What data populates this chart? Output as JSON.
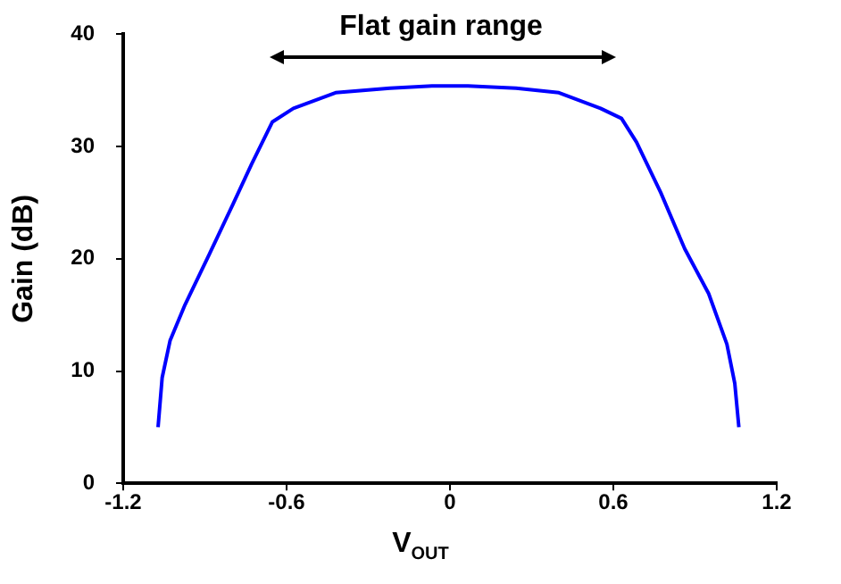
{
  "chart_data": {
    "type": "line",
    "ylabel": "Gain (dB)",
    "xlabel": "V$_{OUT}$",
    "annotations": [
      "Flat gain range"
    ],
    "x": [
      -1.072,
      -1.057,
      -1.028,
      -0.973,
      -0.884,
      -0.796,
      -0.729,
      -0.652,
      -0.575,
      -0.42,
      -0.22,
      -0.066,
      0.066,
      0.243,
      0.4,
      0.553,
      0.63,
      0.685,
      0.774,
      0.862,
      0.95,
      1.017,
      1.046,
      1.061
    ],
    "series": [
      {
        "color": "#0000ff",
        "values": [
          5,
          9.4,
          12.7,
          15.9,
          20.4,
          24.9,
          28.4,
          32.2,
          33.4,
          34.8,
          35.2,
          35.4,
          35.4,
          35.2,
          34.8,
          33.4,
          32.5,
          30.4,
          25.9,
          20.9,
          16.9,
          12.4,
          8.9,
          5
        ]
      }
    ],
    "xlim": [
      -1.2,
      1.2
    ],
    "xticks": [
      -1.2,
      -0.6,
      0,
      0.6,
      1.2
    ],
    "ylim": [
      0,
      40
    ],
    "yticks": [
      0,
      10,
      20,
      30,
      40
    ],
    "grid": false,
    "legend": false,
    "marker": "none",
    "line_style": "solid"
  }
}
